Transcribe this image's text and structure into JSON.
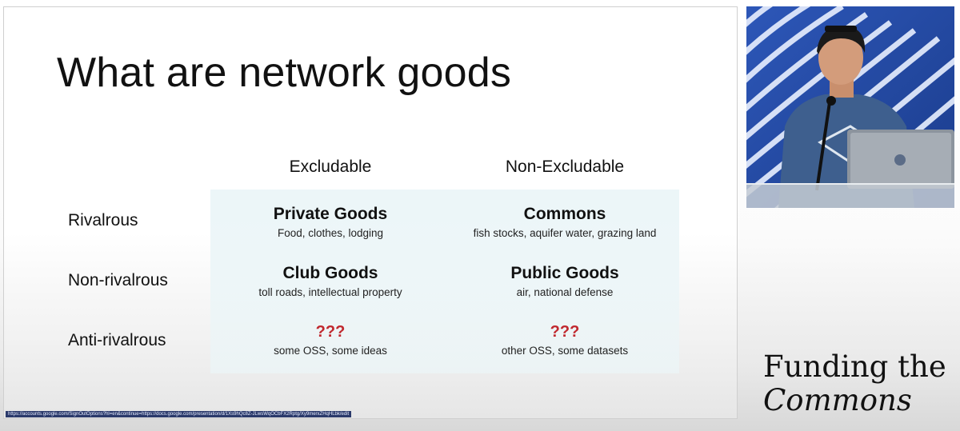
{
  "slide": {
    "title": "What are network goods",
    "columns": [
      "Excludable",
      "Non-Excludable"
    ],
    "rows": [
      {
        "label": "Rivalrous",
        "cells": [
          {
            "title": "Private Goods",
            "subtitle": "Food, clothes, lodging"
          },
          {
            "title": "Commons",
            "subtitle": "fish stocks, aquifer water, grazing land"
          }
        ]
      },
      {
        "label": "Non-rivalrous",
        "cells": [
          {
            "title": "Club Goods",
            "subtitle": "toll roads, intellectual property"
          },
          {
            "title": "Public Goods",
            "subtitle": "air, national defense"
          }
        ]
      },
      {
        "label": "Anti-rivalrous",
        "cells": [
          {
            "title": "???",
            "subtitle": "some OSS, some ideas"
          },
          {
            "title": "???",
            "subtitle": "other OSS, some datasets"
          }
        ]
      }
    ],
    "unknown_color": "#c0282e",
    "url": "https://accounts.google.com/SignOutOptions?hl=en&continue=https://docs.google.com/presentation/d/1Xs9hQc8Z-JLwsWqOCbFX2Rptg/Xy9merxZHqHLbk/edit"
  },
  "brand": {
    "line1": "Funding the",
    "line2": "Commons"
  },
  "video": {
    "icon": "webcam-feed"
  }
}
